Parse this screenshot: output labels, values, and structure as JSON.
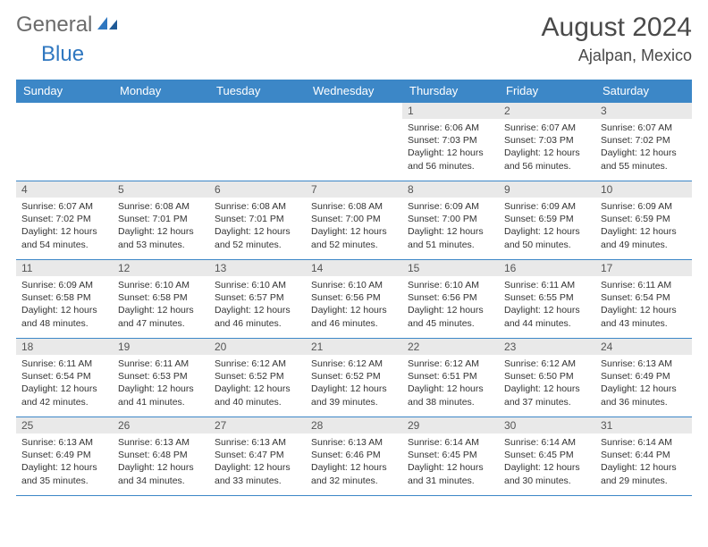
{
  "brand": {
    "general": "General",
    "blue": "Blue"
  },
  "title": "August 2024",
  "location": "Ajalpan, Mexico",
  "colors": {
    "header_bg": "#3c87c7",
    "header_text": "#ffffff",
    "daynum_bg": "#e9e9e9",
    "border": "#3c87c7",
    "logo_gray": "#6b6b6b",
    "logo_blue": "#2f77c0"
  },
  "weekdays": [
    "Sunday",
    "Monday",
    "Tuesday",
    "Wednesday",
    "Thursday",
    "Friday",
    "Saturday"
  ],
  "weeks": [
    [
      null,
      null,
      null,
      null,
      {
        "n": "1",
        "sr": "6:06 AM",
        "ss": "7:03 PM",
        "dh": "12",
        "dm": "56"
      },
      {
        "n": "2",
        "sr": "6:07 AM",
        "ss": "7:03 PM",
        "dh": "12",
        "dm": "56"
      },
      {
        "n": "3",
        "sr": "6:07 AM",
        "ss": "7:02 PM",
        "dh": "12",
        "dm": "55"
      }
    ],
    [
      {
        "n": "4",
        "sr": "6:07 AM",
        "ss": "7:02 PM",
        "dh": "12",
        "dm": "54"
      },
      {
        "n": "5",
        "sr": "6:08 AM",
        "ss": "7:01 PM",
        "dh": "12",
        "dm": "53"
      },
      {
        "n": "6",
        "sr": "6:08 AM",
        "ss": "7:01 PM",
        "dh": "12",
        "dm": "52"
      },
      {
        "n": "7",
        "sr": "6:08 AM",
        "ss": "7:00 PM",
        "dh": "12",
        "dm": "52"
      },
      {
        "n": "8",
        "sr": "6:09 AM",
        "ss": "7:00 PM",
        "dh": "12",
        "dm": "51"
      },
      {
        "n": "9",
        "sr": "6:09 AM",
        "ss": "6:59 PM",
        "dh": "12",
        "dm": "50"
      },
      {
        "n": "10",
        "sr": "6:09 AM",
        "ss": "6:59 PM",
        "dh": "12",
        "dm": "49"
      }
    ],
    [
      {
        "n": "11",
        "sr": "6:09 AM",
        "ss": "6:58 PM",
        "dh": "12",
        "dm": "48"
      },
      {
        "n": "12",
        "sr": "6:10 AM",
        "ss": "6:58 PM",
        "dh": "12",
        "dm": "47"
      },
      {
        "n": "13",
        "sr": "6:10 AM",
        "ss": "6:57 PM",
        "dh": "12",
        "dm": "46"
      },
      {
        "n": "14",
        "sr": "6:10 AM",
        "ss": "6:56 PM",
        "dh": "12",
        "dm": "46"
      },
      {
        "n": "15",
        "sr": "6:10 AM",
        "ss": "6:56 PM",
        "dh": "12",
        "dm": "45"
      },
      {
        "n": "16",
        "sr": "6:11 AM",
        "ss": "6:55 PM",
        "dh": "12",
        "dm": "44"
      },
      {
        "n": "17",
        "sr": "6:11 AM",
        "ss": "6:54 PM",
        "dh": "12",
        "dm": "43"
      }
    ],
    [
      {
        "n": "18",
        "sr": "6:11 AM",
        "ss": "6:54 PM",
        "dh": "12",
        "dm": "42"
      },
      {
        "n": "19",
        "sr": "6:11 AM",
        "ss": "6:53 PM",
        "dh": "12",
        "dm": "41"
      },
      {
        "n": "20",
        "sr": "6:12 AM",
        "ss": "6:52 PM",
        "dh": "12",
        "dm": "40"
      },
      {
        "n": "21",
        "sr": "6:12 AM",
        "ss": "6:52 PM",
        "dh": "12",
        "dm": "39"
      },
      {
        "n": "22",
        "sr": "6:12 AM",
        "ss": "6:51 PM",
        "dh": "12",
        "dm": "38"
      },
      {
        "n": "23",
        "sr": "6:12 AM",
        "ss": "6:50 PM",
        "dh": "12",
        "dm": "37"
      },
      {
        "n": "24",
        "sr": "6:13 AM",
        "ss": "6:49 PM",
        "dh": "12",
        "dm": "36"
      }
    ],
    [
      {
        "n": "25",
        "sr": "6:13 AM",
        "ss": "6:49 PM",
        "dh": "12",
        "dm": "35"
      },
      {
        "n": "26",
        "sr": "6:13 AM",
        "ss": "6:48 PM",
        "dh": "12",
        "dm": "34"
      },
      {
        "n": "27",
        "sr": "6:13 AM",
        "ss": "6:47 PM",
        "dh": "12",
        "dm": "33"
      },
      {
        "n": "28",
        "sr": "6:13 AM",
        "ss": "6:46 PM",
        "dh": "12",
        "dm": "32"
      },
      {
        "n": "29",
        "sr": "6:14 AM",
        "ss": "6:45 PM",
        "dh": "12",
        "dm": "31"
      },
      {
        "n": "30",
        "sr": "6:14 AM",
        "ss": "6:45 PM",
        "dh": "12",
        "dm": "30"
      },
      {
        "n": "31",
        "sr": "6:14 AM",
        "ss": "6:44 PM",
        "dh": "12",
        "dm": "29"
      }
    ]
  ],
  "labels": {
    "sunrise": "Sunrise:",
    "sunset": "Sunset:",
    "daylight_prefix": "Daylight:",
    "hours_word": "hours",
    "and_word": "and",
    "minutes_word": "minutes."
  }
}
